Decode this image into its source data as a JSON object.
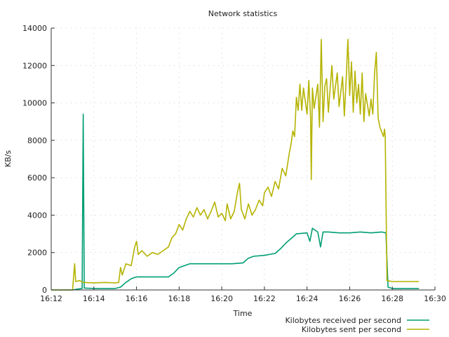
{
  "chart_data": {
    "type": "line",
    "title": "Network statistics",
    "xlabel": "Time",
    "ylabel": "KB/s",
    "xlim": [
      "16:12",
      "16:30"
    ],
    "ylim": [
      0,
      14000
    ],
    "x_ticks": [
      "16:12",
      "16:14",
      "16:16",
      "16:18",
      "16:20",
      "16:22",
      "16:24",
      "16:26",
      "16:28",
      "16:30"
    ],
    "y_ticks": [
      0,
      2000,
      4000,
      6000,
      8000,
      10000,
      12000,
      14000
    ],
    "grid": true,
    "legend_position": "bottom-right",
    "series": [
      {
        "name": "Kilobytes received per second",
        "color": "#009E73",
        "points": [
          [
            "16:12:00",
            0
          ],
          [
            "16:13:00",
            0
          ],
          [
            "16:13:15",
            50
          ],
          [
            "16:13:27",
            80
          ],
          [
            "16:13:30",
            9400
          ],
          [
            "16:13:33",
            100
          ],
          [
            "16:14:00",
            80
          ],
          [
            "16:14:30",
            80
          ],
          [
            "16:15:00",
            80
          ],
          [
            "16:15:15",
            150
          ],
          [
            "16:15:30",
            400
          ],
          [
            "16:15:45",
            600
          ],
          [
            "16:16:00",
            700
          ],
          [
            "16:16:30",
            700
          ],
          [
            "16:17:00",
            700
          ],
          [
            "16:17:30",
            700
          ],
          [
            "16:17:45",
            900
          ],
          [
            "16:18:00",
            1200
          ],
          [
            "16:18:15",
            1300
          ],
          [
            "16:18:30",
            1400
          ],
          [
            "16:19:00",
            1400
          ],
          [
            "16:19:30",
            1400
          ],
          [
            "16:20:00",
            1400
          ],
          [
            "16:20:30",
            1400
          ],
          [
            "16:21:00",
            1450
          ],
          [
            "16:21:15",
            1700
          ],
          [
            "16:21:30",
            1800
          ],
          [
            "16:22:00",
            1850
          ],
          [
            "16:22:30",
            1950
          ],
          [
            "16:22:45",
            2200
          ],
          [
            "16:23:00",
            2500
          ],
          [
            "16:23:30",
            3000
          ],
          [
            "16:24:00",
            3050
          ],
          [
            "16:24:08",
            2600
          ],
          [
            "16:24:15",
            3300
          ],
          [
            "16:24:30",
            3100
          ],
          [
            "16:24:38",
            2300
          ],
          [
            "16:24:45",
            3100
          ],
          [
            "16:25:00",
            3100
          ],
          [
            "16:25:30",
            3050
          ],
          [
            "16:26:00",
            3050
          ],
          [
            "16:26:30",
            3100
          ],
          [
            "16:27:00",
            3050
          ],
          [
            "16:27:30",
            3100
          ],
          [
            "16:27:42",
            3050
          ],
          [
            "16:27:48",
            150
          ],
          [
            "16:28:00",
            80
          ],
          [
            "16:28:30",
            80
          ],
          [
            "16:29:15",
            80
          ]
        ]
      },
      {
        "name": "Kilobytes sent per second",
        "color": "#B5B300",
        "points": [
          [
            "16:12:00",
            0
          ],
          [
            "16:13:00",
            0
          ],
          [
            "16:13:06",
            1400
          ],
          [
            "16:13:09",
            450
          ],
          [
            "16:13:20",
            500
          ],
          [
            "16:13:30",
            400
          ],
          [
            "16:14:00",
            380
          ],
          [
            "16:14:30",
            400
          ],
          [
            "16:15:00",
            380
          ],
          [
            "16:15:10",
            400
          ],
          [
            "16:15:15",
            1200
          ],
          [
            "16:15:20",
            800
          ],
          [
            "16:15:30",
            1400
          ],
          [
            "16:15:45",
            1300
          ],
          [
            "16:15:55",
            2300
          ],
          [
            "16:16:00",
            2600
          ],
          [
            "16:16:05",
            1900
          ],
          [
            "16:16:15",
            2100
          ],
          [
            "16:16:30",
            1800
          ],
          [
            "16:16:45",
            2000
          ],
          [
            "16:17:00",
            1900
          ],
          [
            "16:17:15",
            2100
          ],
          [
            "16:17:30",
            2300
          ],
          [
            "16:17:40",
            2800
          ],
          [
            "16:17:50",
            3000
          ],
          [
            "16:18:00",
            3500
          ],
          [
            "16:18:10",
            3200
          ],
          [
            "16:18:20",
            3800
          ],
          [
            "16:18:30",
            4200
          ],
          [
            "16:18:40",
            3900
          ],
          [
            "16:18:50",
            4400
          ],
          [
            "16:19:00",
            4000
          ],
          [
            "16:19:10",
            4300
          ],
          [
            "16:19:20",
            3800
          ],
          [
            "16:19:30",
            4200
          ],
          [
            "16:19:40",
            4700
          ],
          [
            "16:19:50",
            3900
          ],
          [
            "16:20:00",
            4100
          ],
          [
            "16:20:10",
            3700
          ],
          [
            "16:20:15",
            4600
          ],
          [
            "16:20:25",
            3800
          ],
          [
            "16:20:35",
            4200
          ],
          [
            "16:20:45",
            5300
          ],
          [
            "16:20:50",
            5700
          ],
          [
            "16:20:55",
            4300
          ],
          [
            "16:21:05",
            3800
          ],
          [
            "16:21:15",
            4600
          ],
          [
            "16:21:25",
            4000
          ],
          [
            "16:21:35",
            4300
          ],
          [
            "16:21:45",
            4800
          ],
          [
            "16:21:55",
            4500
          ],
          [
            "16:22:00",
            5200
          ],
          [
            "16:22:10",
            5500
          ],
          [
            "16:22:20",
            5000
          ],
          [
            "16:22:30",
            5800
          ],
          [
            "16:22:40",
            5400
          ],
          [
            "16:22:50",
            6500
          ],
          [
            "16:23:00",
            6100
          ],
          [
            "16:23:10",
            7300
          ],
          [
            "16:23:15",
            7800
          ],
          [
            "16:23:20",
            8500
          ],
          [
            "16:23:25",
            8200
          ],
          [
            "16:23:30",
            10300
          ],
          [
            "16:23:35",
            9600
          ],
          [
            "16:23:40",
            11000
          ],
          [
            "16:23:45",
            9600
          ],
          [
            "16:23:50",
            10800
          ],
          [
            "16:23:55",
            10100
          ],
          [
            "16:24:00",
            9400
          ],
          [
            "16:24:05",
            11200
          ],
          [
            "16:24:10",
            9200
          ],
          [
            "16:24:12",
            5900
          ],
          [
            "16:24:15",
            10800
          ],
          [
            "16:24:20",
            9700
          ],
          [
            "16:24:30",
            11000
          ],
          [
            "16:24:35",
            8700
          ],
          [
            "16:24:40",
            13400
          ],
          [
            "16:24:45",
            9000
          ],
          [
            "16:24:50",
            10900
          ],
          [
            "16:24:55",
            11300
          ],
          [
            "16:25:00",
            9500
          ],
          [
            "16:25:05",
            10800
          ],
          [
            "16:25:10",
            12000
          ],
          [
            "16:25:15",
            10200
          ],
          [
            "16:25:25",
            11600
          ],
          [
            "16:25:30",
            9800
          ],
          [
            "16:25:40",
            11400
          ],
          [
            "16:25:45",
            9300
          ],
          [
            "16:25:50",
            11200
          ],
          [
            "16:25:55",
            13400
          ],
          [
            "16:26:00",
            10400
          ],
          [
            "16:26:05",
            12200
          ],
          [
            "16:26:10",
            9500
          ],
          [
            "16:26:15",
            11700
          ],
          [
            "16:26:20",
            10000
          ],
          [
            "16:26:25",
            11000
          ],
          [
            "16:26:30",
            9400
          ],
          [
            "16:26:35",
            11600
          ],
          [
            "16:26:40",
            9000
          ],
          [
            "16:26:45",
            10500
          ],
          [
            "16:26:55",
            9300
          ],
          [
            "16:27:00",
            10200
          ],
          [
            "16:27:05",
            9400
          ],
          [
            "16:27:10",
            11600
          ],
          [
            "16:27:15",
            12700
          ],
          [
            "16:27:20",
            9200
          ],
          [
            "16:27:25",
            8700
          ],
          [
            "16:27:35",
            8200
          ],
          [
            "16:27:38",
            8600
          ],
          [
            "16:27:40",
            8200
          ],
          [
            "16:27:45",
            500
          ],
          [
            "16:28:00",
            450
          ],
          [
            "16:28:30",
            450
          ],
          [
            "16:29:00",
            450
          ],
          [
            "16:29:15",
            450
          ]
        ]
      }
    ]
  }
}
